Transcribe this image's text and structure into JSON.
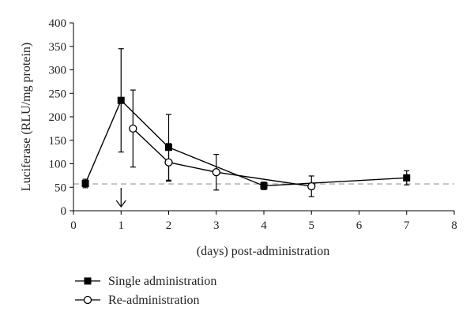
{
  "chart_data": {
    "type": "line",
    "title": "",
    "xlabel": "(days) post-administration",
    "ylabel": "Luciferase (RLU/mg protein)",
    "xlim": [
      0,
      8
    ],
    "ylim": [
      0,
      400
    ],
    "x_ticks": [
      0,
      1,
      2,
      3,
      4,
      5,
      6,
      7,
      8
    ],
    "y_ticks": [
      0,
      50,
      100,
      150,
      200,
      250,
      300,
      350,
      400
    ],
    "grid": false,
    "legend_position": "bottom-left",
    "reference_line": {
      "y": 57,
      "style": "dashed",
      "color": "#aaaaaa"
    },
    "arrow_annotation": {
      "x": 1,
      "direction": "down"
    },
    "series": [
      {
        "name": "Single administration",
        "marker": "filled-square",
        "color": "#000000",
        "points": [
          {
            "x": 0.25,
            "y": 58,
            "err": 9
          },
          {
            "x": 1,
            "y": 235,
            "err": 110
          },
          {
            "x": 2,
            "y": 135,
            "err": 70
          },
          {
            "x": 4,
            "y": 53,
            "err": 8
          },
          {
            "x": 7,
            "y": 70,
            "err": 15
          }
        ]
      },
      {
        "name": "Re-administration",
        "marker": "open-circle",
        "color": "#000000",
        "points": [
          {
            "x": 1.25,
            "y": 175,
            "err": 82
          },
          {
            "x": 2,
            "y": 103,
            "err": 40
          },
          {
            "x": 3,
            "y": 82,
            "err": 38
          },
          {
            "x": 5,
            "y": 52,
            "err": 22
          }
        ]
      }
    ]
  }
}
